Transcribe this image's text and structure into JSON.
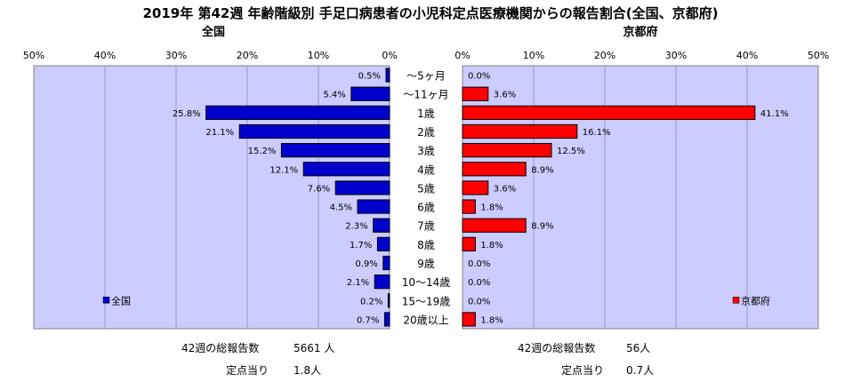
{
  "title": "2019年 第42週 年齢階級別 手足口病患者の小児科定点医療機関からの報告割合(全国、京都府)",
  "footer": {
    "left_total_label": "42週の総報告数",
    "left_total_value": "5661 人",
    "left_per_label": "定点当り",
    "left_per_value": "1.8人",
    "right_total_label": "42週の総報告数",
    "right_total_value": "56人",
    "right_per_label": "定点当り",
    "right_per_value": "0.7人"
  },
  "colors": {
    "plot_bg": "#ccccff",
    "national": "#0000cc",
    "kyoto": "#ff0000",
    "grid": "#9999cc"
  },
  "chart_data": [
    {
      "type": "bar",
      "orientation": "horizontal",
      "title": "全国",
      "direction": "leftward",
      "xlim": [
        0,
        50
      ],
      "ticks": [
        "0%",
        "10%",
        "20%",
        "30%",
        "40%",
        "50%"
      ],
      "categories": [
        "～5ヶ月",
        "～11ヶ月",
        "1歳",
        "2歳",
        "3歳",
        "4歳",
        "5歳",
        "6歳",
        "7歳",
        "8歳",
        "9歳",
        "10～14歳",
        "15～19歳",
        "20歳以上"
      ],
      "series": [
        {
          "name": "全国",
          "values": [
            0.5,
            5.4,
            25.8,
            21.1,
            15.2,
            12.1,
            7.6,
            4.5,
            2.3,
            1.7,
            0.9,
            2.1,
            0.2,
            0.7
          ],
          "labels": [
            "0.5%",
            "5.4%",
            "25.8%",
            "21.1%",
            "15.2%",
            "12.1%",
            "7.6%",
            "4.5%",
            "2.3%",
            "1.7%",
            "0.9%",
            "2.1%",
            "0.2%",
            "0.7%"
          ]
        }
      ],
      "legend": "bottom-left",
      "grid": true
    },
    {
      "type": "bar",
      "orientation": "horizontal",
      "title": "京都府",
      "direction": "rightward",
      "xlim": [
        0,
        50
      ],
      "ticks": [
        "0%",
        "10%",
        "20%",
        "30%",
        "40%",
        "50%"
      ],
      "categories": [
        "～5ヶ月",
        "～11ヶ月",
        "1歳",
        "2歳",
        "3歳",
        "4歳",
        "5歳",
        "6歳",
        "7歳",
        "8歳",
        "9歳",
        "10～14歳",
        "15～19歳",
        "20歳以上"
      ],
      "series": [
        {
          "name": "京都府",
          "values": [
            0.0,
            3.6,
            41.1,
            16.1,
            12.5,
            8.9,
            3.6,
            1.8,
            8.9,
            1.8,
            0.0,
            0.0,
            0.0,
            1.8
          ],
          "labels": [
            "0.0%",
            "3.6%",
            "41.1%",
            "16.1%",
            "12.5%",
            "8.9%",
            "3.6%",
            "1.8%",
            "8.9%",
            "1.8%",
            "0.0%",
            "0.0%",
            "0.0%",
            "1.8%"
          ]
        }
      ],
      "legend": "bottom-right",
      "grid": true
    }
  ]
}
